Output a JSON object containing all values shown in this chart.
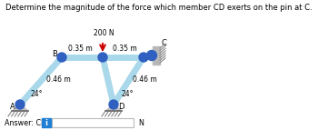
{
  "title": "Determine the magnitude of the force which member CD exerts on the pin at C.",
  "title_fontsize": 6.0,
  "answer_label": "Answer: CD =",
  "answer_unit": "N",
  "answer_box_color": "#1e7fd4",
  "answer_box_letter": "i",
  "dim_200N": "200 N",
  "dim_035_left": "0.35 m",
  "dim_035_right": "0.35 m",
  "dim_046_left": "0.46 m",
  "dim_046_right": "0.46 m",
  "angle_label": "24°",
  "member_color": "#a8d8ea",
  "member_lw": 5,
  "pin_color": "#3060c0",
  "ground_color": "#b0b0b0",
  "wall_color": "#c0c0c0",
  "text_fontsize": 5.5,
  "label_fontsize": 6.0,
  "node_A_label": "A",
  "node_B_label": "B",
  "node_C_label": "C",
  "node_D_label": "D"
}
